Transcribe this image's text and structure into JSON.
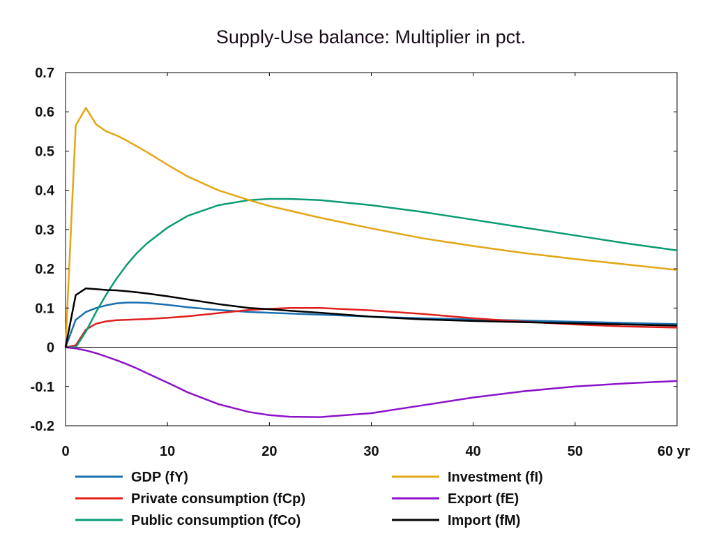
{
  "chart_data": {
    "type": "line",
    "title": "Supply-Use balance: Multiplier in pct.",
    "xlabel": "",
    "ylabel": "",
    "xlim": [
      0,
      60
    ],
    "ylim": [
      -0.2,
      0.7
    ],
    "x_ticks": [
      "0",
      "10",
      "20",
      "30",
      "40",
      "50",
      "60 yr"
    ],
    "y_ticks": [
      "0.7",
      "0.6",
      "0.5",
      "0.4",
      "0.3",
      "0.2",
      "0.1",
      "0",
      "-0.1",
      "-0.2"
    ],
    "grid": false,
    "legend_position": "bottom",
    "x": [
      0,
      1,
      2,
      3,
      4,
      5,
      6,
      7,
      8,
      10,
      12,
      15,
      18,
      20,
      22,
      25,
      30,
      35,
      40,
      45,
      50,
      55,
      60
    ],
    "series": [
      {
        "name": "GDP (fY)",
        "color": "#1a6faf",
        "values": [
          0,
          0.07,
          0.09,
          0.1,
          0.107,
          0.112,
          0.114,
          0.114,
          0.113,
          0.108,
          0.102,
          0.095,
          0.09,
          0.088,
          0.086,
          0.083,
          0.078,
          0.074,
          0.071,
          0.068,
          0.065,
          0.062,
          0.059
        ]
      },
      {
        "name": "Private consumption (fCp)",
        "color": "#e0201c",
        "values": [
          0,
          0.005,
          0.045,
          0.06,
          0.066,
          0.069,
          0.07,
          0.071,
          0.072,
          0.075,
          0.079,
          0.087,
          0.095,
          0.098,
          0.1,
          0.1,
          0.094,
          0.085,
          0.074,
          0.065,
          0.058,
          0.053,
          0.05
        ]
      },
      {
        "name": "Public consumption (fCo)",
        "color": "#0a9a74",
        "values": [
          0,
          0,
          0.04,
          0.09,
          0.135,
          0.175,
          0.21,
          0.24,
          0.265,
          0.305,
          0.335,
          0.362,
          0.375,
          0.378,
          0.378,
          0.375,
          0.362,
          0.345,
          0.325,
          0.305,
          0.285,
          0.265,
          0.247
        ]
      },
      {
        "name": "Investment (fI)",
        "color": "#e3a614",
        "values": [
          0,
          0.565,
          0.61,
          0.568,
          0.55,
          0.54,
          0.527,
          0.512,
          0.497,
          0.465,
          0.435,
          0.4,
          0.375,
          0.36,
          0.348,
          0.33,
          0.303,
          0.278,
          0.258,
          0.24,
          0.225,
          0.211,
          0.197
        ]
      },
      {
        "name": "Export (fE)",
        "color": "#8b12c9",
        "values": [
          0,
          -0.003,
          -0.008,
          -0.015,
          -0.024,
          -0.033,
          -0.043,
          -0.054,
          -0.066,
          -0.09,
          -0.115,
          -0.145,
          -0.165,
          -0.173,
          -0.177,
          -0.178,
          -0.168,
          -0.148,
          -0.128,
          -0.112,
          -0.1,
          -0.092,
          -0.086
        ]
      },
      {
        "name": "Import (fM)",
        "color": "#000000",
        "values": [
          0,
          0.133,
          0.15,
          0.148,
          0.146,
          0.145,
          0.143,
          0.14,
          0.137,
          0.13,
          0.122,
          0.11,
          0.1,
          0.097,
          0.093,
          0.088,
          0.078,
          0.071,
          0.067,
          0.064,
          0.061,
          0.058,
          0.055
        ]
      }
    ]
  }
}
